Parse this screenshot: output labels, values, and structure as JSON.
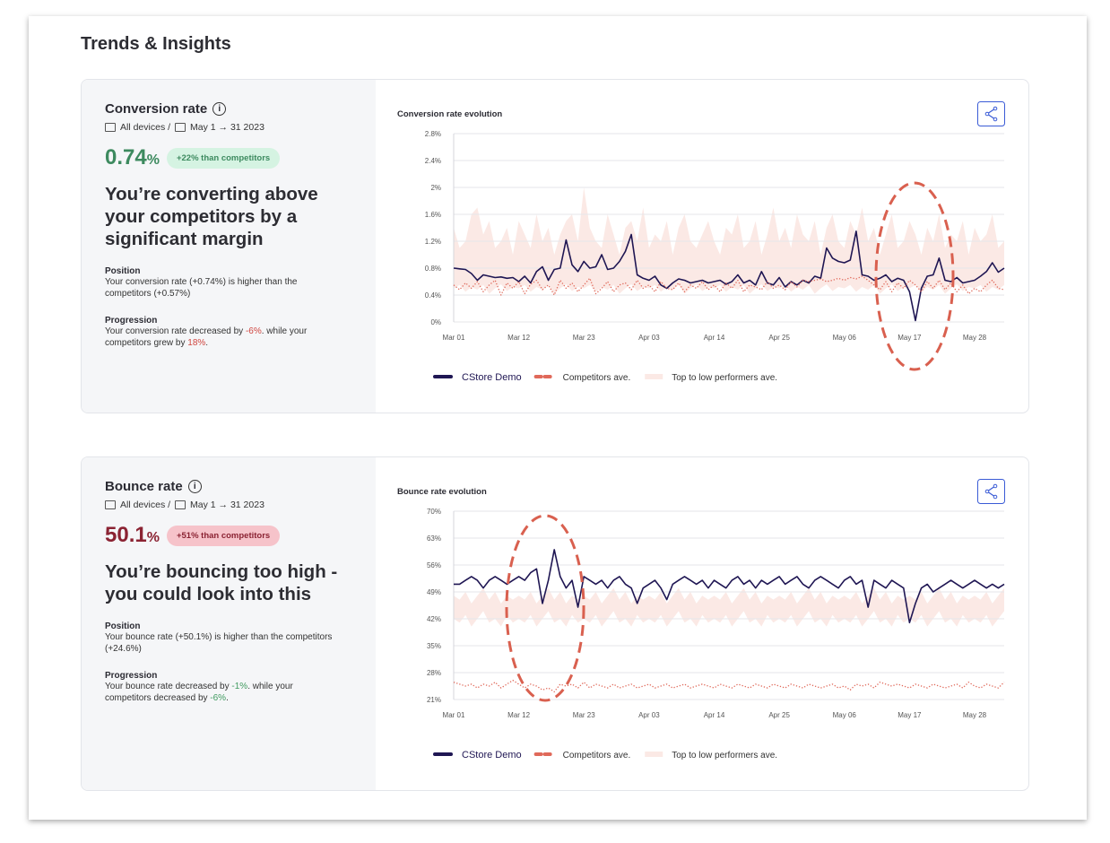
{
  "header": {
    "title": "Trends & Insights"
  },
  "panels": [
    {
      "title": "Conversion rate",
      "devices": "All devices /",
      "dates": "May 1 → 31 2023",
      "metric": "0.74",
      "metric_unit": "%",
      "metric_color": "#3d8a5f",
      "badge": "+22% than competitors",
      "badge_bg": "#d5f3e2",
      "headline": "You’re converting above your competitors by a significant margin",
      "position_label": "Position",
      "position_text": "Your conversion rate (+0.74%) is higher than the competitors (+0.57%)",
      "progression_label": "Progression",
      "progression": [
        "Your conversion rate decreased by ",
        "-6%",
        ". while your competitors grew by ",
        "18%",
        "."
      ],
      "highlight_color": "#d0453f"
    },
    {
      "title": "Bounce rate",
      "devices": "All devices /",
      "dates": "May 1 → 31 2023",
      "metric": "50.1",
      "metric_unit": "%",
      "metric_color": "#8b2333",
      "badge": "+51% than competitors",
      "badge_bg": "#f6c3ca",
      "headline": "You’re bouncing too high - you could look into this",
      "position_label": "Position",
      "position_text": "Your bounce rate (+50.1%) is higher than the competitors (+24.6%)",
      "progression_label": "Progression",
      "progression": [
        "Your bounce rate decreased by ",
        "-1%",
        ". while your competitors decreased by ",
        "-6%",
        "."
      ],
      "highlight_color": "#3f9a5f"
    }
  ],
  "chart_data": [
    {
      "type": "line",
      "title": "Conversion rate evolution",
      "categories": [
        "Mar 01",
        null,
        null,
        null,
        null,
        null,
        null,
        null,
        null,
        null,
        null,
        "Mar 12",
        null,
        null,
        null,
        null,
        null,
        null,
        null,
        null,
        null,
        null,
        "Mar 23",
        null,
        null,
        null,
        null,
        null,
        null,
        null,
        null,
        null,
        null,
        "Apr 03",
        null,
        null,
        null,
        null,
        null,
        null,
        null,
        null,
        null,
        null,
        "Apr 14",
        null,
        null,
        null,
        null,
        null,
        null,
        null,
        null,
        null,
        null,
        "Apr 25",
        null,
        null,
        null,
        null,
        null,
        null,
        null,
        null,
        null,
        null,
        "May 06",
        null,
        null,
        null,
        null,
        null,
        null,
        null,
        null,
        null,
        null,
        "May 17",
        null,
        null,
        null,
        null,
        null,
        null,
        null,
        null,
        null,
        null,
        "May 28",
        null,
        null,
        null,
        null,
        null
      ],
      "ylim": [
        0,
        2.8
      ],
      "yticks": [
        {
          "value": 0,
          "label": "0%"
        },
        {
          "value": 0.4,
          "label": "0.4%"
        },
        {
          "value": 0.8,
          "label": "0.8%"
        },
        {
          "value": 1.2,
          "label": "1.2%"
        },
        {
          "value": 1.6,
          "label": "1.6%"
        },
        {
          "value": 2,
          "label": "2%"
        },
        {
          "value": 2.4,
          "label": "2.4%"
        },
        {
          "value": 2.8,
          "label": "2.8%"
        }
      ],
      "grid": true,
      "series": [
        {
          "name": "CStore Demo",
          "color": "#1f1653",
          "style": "solid",
          "values": [
            0.8,
            0.79,
            0.78,
            0.72,
            0.62,
            0.7,
            0.68,
            0.66,
            0.67,
            0.65,
            0.66,
            0.6,
            0.68,
            0.58,
            0.75,
            0.82,
            0.62,
            0.78,
            0.8,
            1.22,
            0.85,
            0.75,
            0.9,
            0.8,
            0.82,
            1.0,
            0.78,
            0.8,
            0.9,
            1.05,
            1.3,
            0.7,
            0.65,
            0.62,
            0.68,
            0.55,
            0.5,
            0.58,
            0.64,
            0.62,
            0.58,
            0.6,
            0.62,
            0.58,
            0.6,
            0.62,
            0.56,
            0.6,
            0.7,
            0.58,
            0.62,
            0.55,
            0.75,
            0.58,
            0.55,
            0.66,
            0.52,
            0.6,
            0.55,
            0.62,
            0.58,
            0.68,
            0.65,
            1.1,
            0.95,
            0.9,
            0.88,
            0.92,
            1.35,
            0.7,
            0.68,
            0.62,
            0.65,
            0.7,
            0.6,
            0.65,
            0.62,
            0.45,
            0.02,
            0.5,
            0.68,
            0.7,
            0.95,
            0.62,
            0.6,
            0.66,
            0.58,
            0.6,
            0.62,
            0.68,
            0.75,
            0.88,
            0.74,
            0.8
          ]
        },
        {
          "name": "Competitors ave.",
          "color": "#e0695a",
          "style": "dotted",
          "values": [
            0.55,
            0.48,
            0.58,
            0.5,
            0.6,
            0.45,
            0.55,
            0.62,
            0.4,
            0.58,
            0.5,
            0.6,
            0.42,
            0.56,
            0.62,
            0.48,
            0.55,
            0.4,
            0.62,
            0.5,
            0.58,
            0.45,
            0.55,
            0.65,
            0.42,
            0.5,
            0.6,
            0.45,
            0.55,
            0.58,
            0.48,
            0.62,
            0.5,
            0.55,
            0.45,
            0.6,
            0.5,
            0.48,
            0.58,
            0.45,
            0.55,
            0.5,
            0.6,
            0.48,
            0.55,
            0.45,
            0.58,
            0.5,
            0.62,
            0.45,
            0.55,
            0.52,
            0.48,
            0.6,
            0.5,
            0.55,
            0.48,
            0.6,
            0.52,
            0.62,
            0.6,
            0.62,
            0.64,
            0.6,
            0.62,
            0.65,
            0.62,
            0.66,
            0.64,
            0.68,
            0.62,
            0.55,
            0.48,
            0.6,
            0.45,
            0.58,
            0.5,
            0.62,
            0.55,
            0.45,
            0.6,
            0.5,
            0.62,
            0.48,
            0.58,
            0.45,
            0.55,
            0.42,
            0.5,
            0.45,
            0.55,
            0.62,
            0.5,
            0.48
          ]
        },
        {
          "name": "Top to low performers ave.",
          "color": "#fbe9e5",
          "style": "band",
          "lower": [
            0.5,
            0.55,
            0.45,
            0.52,
            0.48,
            0.55,
            0.42,
            0.5,
            0.56,
            0.46,
            0.52,
            0.5,
            0.55,
            0.45,
            0.52,
            0.48,
            0.55,
            0.42,
            0.5,
            0.56,
            0.46,
            0.52,
            0.5,
            0.55,
            0.45,
            0.52,
            0.48,
            0.55,
            0.42,
            0.5,
            0.56,
            0.46,
            0.52,
            0.5,
            0.55,
            0.45,
            0.52,
            0.48,
            0.55,
            0.42,
            0.5,
            0.56,
            0.46,
            0.52,
            0.5,
            0.55,
            0.45,
            0.52,
            0.48,
            0.55,
            0.42,
            0.5,
            0.56,
            0.46,
            0.52,
            0.5,
            0.55,
            0.45,
            0.52,
            0.48,
            0.55,
            0.42,
            0.5,
            0.56,
            0.46,
            0.52,
            0.5,
            0.55,
            0.45,
            0.52,
            0.48,
            0.55,
            0.42,
            0.5,
            0.56,
            0.46,
            0.52,
            0.5,
            0.55,
            0.45,
            0.52,
            0.48,
            0.55,
            0.42,
            0.5,
            0.56,
            0.46,
            0.52,
            0.5,
            0.55,
            0.45,
            0.52,
            0.48,
            0.55
          ],
          "upper": [
            1.4,
            1.1,
            1.2,
            1.6,
            1.7,
            1.3,
            1.5,
            1.1,
            1.2,
            1.4,
            1.0,
            1.5,
            1.3,
            1.1,
            1.6,
            1.2,
            1.4,
            1.0,
            1.3,
            1.5,
            1.6,
            1.2,
            2.0,
            1.4,
            1.2,
            1.1,
            1.6,
            1.3,
            1.0,
            1.4,
            1.5,
            1.2,
            1.7,
            1.1,
            1.3,
            1.2,
            1.5,
            1.0,
            1.4,
            1.6,
            1.2,
            1.1,
            1.3,
            1.5,
            1.2,
            1.0,
            1.4,
            1.3,
            1.6,
            1.1,
            1.2,
            1.5,
            1.0,
            1.3,
            1.7,
            1.2,
            1.4,
            1.1,
            1.6,
            1.3,
            1.2,
            1.5,
            1.0,
            1.4,
            1.6,
            1.2,
            1.1,
            1.5,
            1.3,
            1.7,
            1.2,
            1.4,
            1.0,
            1.3,
            1.6,
            1.1,
            1.2,
            1.5,
            1.3,
            1.0,
            1.4,
            1.2,
            1.6,
            1.1,
            1.3,
            1.2,
            1.5,
            1.0,
            1.4,
            1.2,
            1.3,
            1.6,
            1.1,
            1.2
          ]
        }
      ]
    },
    {
      "type": "line",
      "title": "Bounce rate evolution",
      "categories": [
        "Mar 01",
        null,
        null,
        null,
        null,
        null,
        null,
        null,
        null,
        null,
        null,
        "Mar 12",
        null,
        null,
        null,
        null,
        null,
        null,
        null,
        null,
        null,
        null,
        "Mar 23",
        null,
        null,
        null,
        null,
        null,
        null,
        null,
        null,
        null,
        null,
        "Apr 03",
        null,
        null,
        null,
        null,
        null,
        null,
        null,
        null,
        null,
        null,
        "Apr 14",
        null,
        null,
        null,
        null,
        null,
        null,
        null,
        null,
        null,
        null,
        "Apr 25",
        null,
        null,
        null,
        null,
        null,
        null,
        null,
        null,
        null,
        null,
        "May 06",
        null,
        null,
        null,
        null,
        null,
        null,
        null,
        null,
        null,
        null,
        "May 17",
        null,
        null,
        null,
        null,
        null,
        null,
        null,
        null,
        null,
        null,
        "May 28",
        null,
        null,
        null,
        null,
        null
      ],
      "ylim": [
        21,
        70
      ],
      "yticks": [
        {
          "value": 21,
          "label": "21%"
        },
        {
          "value": 28,
          "label": "28%"
        },
        {
          "value": 35,
          "label": "35%"
        },
        {
          "value": 42,
          "label": "42%"
        },
        {
          "value": 49,
          "label": "49%"
        },
        {
          "value": 56,
          "label": "56%"
        },
        {
          "value": 63,
          "label": "63%"
        },
        {
          "value": 70,
          "label": "70%"
        }
      ],
      "grid": true,
      "series": [
        {
          "name": "CStore Demo",
          "color": "#1f1653",
          "style": "solid",
          "values": [
            51,
            51,
            52,
            53,
            52,
            50,
            52,
            53,
            52,
            51,
            52,
            53,
            52,
            54,
            55,
            46,
            52,
            60,
            53,
            50,
            52,
            45,
            53,
            52,
            51,
            52,
            50,
            52,
            53,
            51,
            50,
            46,
            50,
            51,
            52,
            50,
            47,
            51,
            52,
            53,
            52,
            51,
            52,
            50,
            52,
            51,
            50,
            52,
            53,
            51,
            52,
            50,
            52,
            51,
            52,
            53,
            51,
            52,
            53,
            51,
            50,
            52,
            53,
            52,
            51,
            50,
            52,
            53,
            51,
            52,
            45,
            52,
            51,
            50,
            52,
            51,
            50,
            41,
            46,
            50,
            51,
            49,
            50,
            51,
            52,
            51,
            50,
            51,
            52,
            51,
            50,
            51,
            50,
            51
          ]
        },
        {
          "name": "Competitors ave.",
          "color": "#e0695a",
          "style": "dotted",
          "values": [
            25.5,
            25,
            24.5,
            25,
            24,
            25,
            24.5,
            25.5,
            24,
            25,
            26,
            25,
            24,
            25,
            24.5,
            23.5,
            24,
            23,
            25,
            24.5,
            25,
            24,
            25.5,
            24,
            25,
            24.5,
            24,
            25,
            24,
            24.5,
            25,
            24,
            24.5,
            25,
            24,
            24.5,
            25,
            24,
            24.5,
            25,
            24,
            24.5,
            25,
            24.5,
            24,
            25,
            24.5,
            24,
            25,
            24.5,
            24,
            25,
            24.5,
            24,
            25,
            24.5,
            24,
            25,
            24.5,
            24,
            25,
            24.5,
            24,
            24.5,
            25,
            24,
            24.5,
            23.5,
            25,
            24.5,
            25,
            24,
            25.5,
            25,
            24.5,
            25,
            24.5,
            24,
            25,
            24.5,
            24,
            25,
            24.5,
            24,
            24.5,
            25,
            24,
            25.5,
            24.5,
            24,
            25,
            24.5,
            24,
            25.5
          ]
        },
        {
          "name": "Top to low performers ave.",
          "color": "#fbe9e5",
          "style": "band",
          "lower": [
            42,
            41,
            43,
            40,
            42,
            44,
            41,
            42,
            40,
            43,
            41,
            42,
            41,
            43,
            40,
            42,
            44,
            41,
            42,
            40,
            43,
            41,
            42,
            41,
            43,
            40,
            42,
            44,
            41,
            42,
            40,
            43,
            41,
            42,
            41,
            43,
            40,
            42,
            44,
            41,
            42,
            40,
            43,
            41,
            42,
            41,
            43,
            40,
            42,
            44,
            41,
            42,
            40,
            43,
            41,
            42,
            41,
            43,
            40,
            42,
            44,
            41,
            42,
            40,
            43,
            41,
            42,
            41,
            43,
            40,
            42,
            44,
            41,
            42,
            40,
            43,
            41,
            42,
            41,
            43,
            40,
            42,
            44,
            41,
            42,
            40,
            43,
            41,
            42,
            41,
            43,
            40,
            42,
            44
          ],
          "upper": [
            48,
            47,
            49,
            46,
            48,
            50,
            47,
            49,
            46,
            48,
            47,
            48,
            47,
            49,
            46,
            48,
            50,
            47,
            49,
            46,
            48,
            47,
            48,
            47,
            49,
            46,
            48,
            50,
            47,
            49,
            46,
            48,
            47,
            48,
            47,
            49,
            46,
            48,
            50,
            47,
            49,
            46,
            48,
            47,
            48,
            47,
            49,
            46,
            48,
            50,
            47,
            49,
            46,
            48,
            47,
            48,
            47,
            49,
            46,
            48,
            50,
            47,
            49,
            46,
            48,
            47,
            48,
            47,
            49,
            46,
            48,
            50,
            47,
            49,
            46,
            48,
            47,
            48,
            47,
            49,
            46,
            48,
            50,
            47,
            49,
            46,
            48,
            47,
            48,
            47,
            49,
            46,
            48,
            50
          ]
        }
      ]
    }
  ]
}
